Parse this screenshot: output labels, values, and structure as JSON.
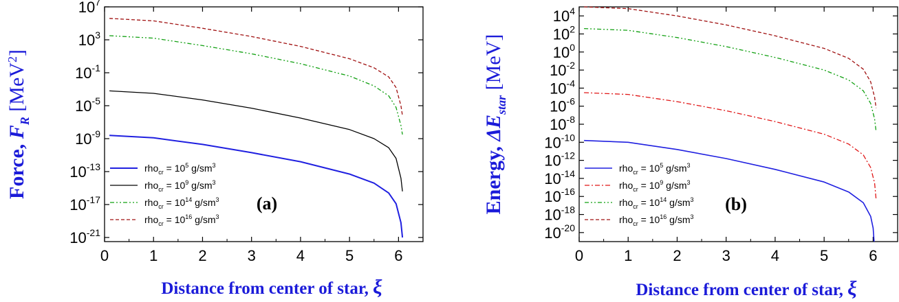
{
  "colors": {
    "axis_label": "#1b1bd9",
    "series_solid_blue": "#1f1fe0",
    "series_black": "#000000",
    "series_green": "#11a011",
    "series_red_dashdot": "#e01515",
    "series_darkred_dash": "#a01010"
  },
  "chart_data": [
    {
      "type": "line",
      "panel_label": "(a)",
      "xlabel": "Distance from center of star,",
      "xlabel_symbol": "ξ",
      "ylabel": "Force, F",
      "ylabel_sub": "R",
      "ylabel_unit": "[MeV",
      "ylabel_unit_sup": "2",
      "ylabel_unit_close": "]",
      "xlim": [
        0,
        6.5
      ],
      "ylog": true,
      "ylim_log10": [
        -21.5,
        7
      ],
      "x_ticks": [
        0,
        1,
        2,
        3,
        4,
        5,
        6
      ],
      "y_ticks_log10": [
        -21,
        -17,
        -13,
        -9,
        -5,
        -1,
        3,
        7
      ],
      "legend_position": "bottom-left",
      "series": [
        {
          "name": "rho_cr = 10^5 g/sm^3",
          "legend_base": "rho",
          "legend_sub": "cr",
          "legend_mid": " = 10",
          "legend_exp": "5",
          "legend_unit": " g/sm",
          "legend_unit_sup": "3",
          "color": "#1f1fe0",
          "dash": "",
          "width": 2,
          "x": [
            0.1,
            1,
            2,
            3,
            4,
            5,
            5.5,
            5.8,
            5.95,
            6.05,
            6.08
          ],
          "y_log10": [
            -8.6,
            -8.9,
            -9.7,
            -10.7,
            -11.8,
            -13.3,
            -14.4,
            -15.6,
            -16.9,
            -19.2,
            -21.0
          ]
        },
        {
          "name": "rho_cr = 10^9 g/sm^3",
          "legend_base": "rho",
          "legend_sub": "cr",
          "legend_mid": " = 10",
          "legend_exp": "9",
          "legend_unit": " g/sm",
          "legend_unit_sup": "3",
          "color": "#000000",
          "dash": "",
          "width": 1.3,
          "x": [
            0.1,
            1,
            2,
            3,
            4,
            5,
            5.5,
            5.8,
            5.95,
            6.05,
            6.08
          ],
          "y_log10": [
            -3.2,
            -3.5,
            -4.3,
            -5.3,
            -6.5,
            -7.9,
            -9.0,
            -10.1,
            -11.4,
            -13.8,
            -15.4
          ]
        },
        {
          "name": "rho_cr = 10^14 g/sm^3",
          "legend_base": "rho",
          "legend_sub": "cr",
          "legend_mid": " = 10",
          "legend_exp": "14",
          "legend_unit": " g/sm",
          "legend_unit_sup": "3",
          "color": "#11a011",
          "dash": "6 3 2 3 2 3",
          "width": 1.3,
          "x": [
            0.1,
            1,
            2,
            3,
            4,
            5,
            5.5,
            5.8,
            5.95,
            6.05,
            6.08
          ],
          "y_log10": [
            3.5,
            3.2,
            2.3,
            1.3,
            0.1,
            -1.4,
            -2.6,
            -3.8,
            -5.2,
            -7.4,
            -8.5
          ]
        },
        {
          "name": "rho_cr = 10^16 g/sm^3",
          "legend_base": "rho",
          "legend_sub": "cr",
          "legend_mid": " = 10",
          "legend_exp": "16",
          "legend_unit": " g/sm",
          "legend_unit_sup": "3",
          "color": "#a01010",
          "dash": "5 3",
          "width": 1.3,
          "x": [
            0.1,
            1,
            2,
            3,
            4,
            5,
            5.5,
            5.8,
            5.95,
            6.05,
            6.08
          ],
          "y_log10": [
            5.6,
            5.3,
            4.4,
            3.4,
            2.2,
            0.7,
            -0.4,
            -1.5,
            -2.8,
            -5.0,
            -6.2
          ]
        }
      ]
    },
    {
      "type": "line",
      "panel_label": "(b)",
      "xlabel": "Distance from center of star,",
      "xlabel_symbol": "ξ",
      "ylabel": "Energy, ΔE",
      "ylabel_sub": "star",
      "ylabel_unit": "[MeV]",
      "xlim": [
        0,
        6.5
      ],
      "ylog": true,
      "ylim_log10": [
        -21,
        5
      ],
      "x_ticks": [
        0,
        1,
        2,
        3,
        4,
        5,
        6
      ],
      "y_ticks_log10": [
        -20,
        -18,
        -16,
        -14,
        -12,
        -10,
        -8,
        -6,
        -4,
        -2,
        0,
        2,
        4
      ],
      "legend_position": "bottom-left",
      "series": [
        {
          "name": "rho_cr = 10^5 g/sm^3",
          "legend_base": "rho",
          "legend_sub": "cr",
          "legend_mid": " = 10",
          "legend_exp": "5",
          "legend_unit": " g/sm",
          "legend_unit_sup": "3",
          "color": "#1f1fe0",
          "dash": "",
          "width": 1.6,
          "x": [
            0.1,
            1,
            2,
            3,
            4,
            5,
            5.5,
            5.8,
            5.95,
            6.0,
            6.02
          ],
          "y_log10": [
            -9.8,
            -10.0,
            -10.8,
            -11.8,
            -13.0,
            -14.4,
            -15.5,
            -16.7,
            -18.2,
            -19.5,
            -21.0
          ]
        },
        {
          "name": "rho_cr = 10^9 g/sm^3",
          "legend_base": "rho",
          "legend_sub": "cr",
          "legend_mid": " = 10",
          "legend_exp": "9",
          "legend_unit": " g/sm",
          "legend_unit_sup": "3",
          "color": "#e01515",
          "dash": "7 3 2 3",
          "width": 1.3,
          "x": [
            0.1,
            1,
            2,
            3,
            4,
            5,
            5.5,
            5.8,
            5.95,
            6.03,
            6.06
          ],
          "y_log10": [
            -4.5,
            -4.7,
            -5.5,
            -6.5,
            -7.7,
            -9.1,
            -10.2,
            -11.4,
            -12.8,
            -14.5,
            -16.3
          ]
        },
        {
          "name": "rho_cr = 10^14 g/sm^3",
          "legend_base": "rho",
          "legend_sub": "cr",
          "legend_mid": " = 10",
          "legend_exp": "14",
          "legend_unit": " g/sm",
          "legend_unit_sup": "3",
          "color": "#11a011",
          "dash": "6 3 2 3 2 3",
          "width": 1.3,
          "x": [
            0.1,
            1,
            2,
            3,
            4,
            5,
            5.5,
            5.8,
            5.95,
            6.03,
            6.06
          ],
          "y_log10": [
            2.6,
            2.4,
            1.6,
            0.6,
            -0.6,
            -2.0,
            -3.1,
            -4.3,
            -5.7,
            -7.4,
            -8.8
          ]
        },
        {
          "name": "rho_cr = 10^16 g/sm^3",
          "legend_base": "rho",
          "legend_sub": "cr",
          "legend_mid": " = 10",
          "legend_exp": "16",
          "legend_unit": " g/sm",
          "legend_unit_sup": "3",
          "color": "#a01010",
          "dash": "5 3",
          "width": 1.3,
          "x": [
            0.1,
            1,
            2,
            3,
            4,
            5,
            5.5,
            5.8,
            5.95,
            6.03,
            6.06
          ],
          "y_log10": [
            5.0,
            4.8,
            4.0,
            3.0,
            1.8,
            0.4,
            -0.7,
            -1.9,
            -3.3,
            -5.0,
            -6.2
          ]
        }
      ]
    }
  ]
}
